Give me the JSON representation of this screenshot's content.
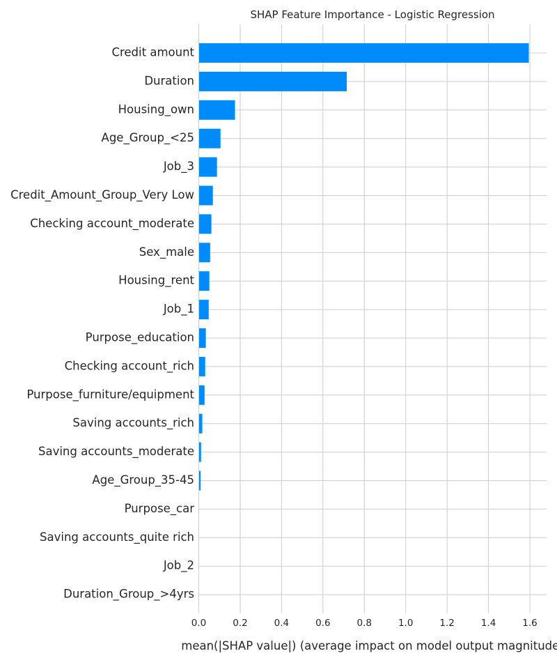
{
  "chart_data": {
    "type": "bar",
    "orientation": "horizontal",
    "title": "SHAP Feature Importance - Logistic Regression",
    "xlabel": "mean(|SHAP value|) (average impact on model output magnitude)",
    "ylabel": "",
    "xlim": [
      0,
      1.7
    ],
    "xticks": [
      "0.0",
      "0.2",
      "0.4",
      "0.6",
      "0.8",
      "1.0",
      "1.2",
      "1.4",
      "1.6"
    ],
    "grid": true,
    "bar_color": "#008bfb",
    "categories": [
      "Credit amount",
      "Duration",
      "Housing_own",
      "Age_Group_<25",
      "Job_3",
      "Credit_Amount_Group_Very Low",
      "Checking account_moderate",
      "Sex_male",
      "Housing_rent",
      "Job_1",
      "Purpose_education",
      "Checking account_rich",
      "Purpose_furniture/equipment",
      "Saving accounts_rich",
      "Saving accounts_moderate",
      "Age_Group_35-45",
      "Purpose_car",
      "Saving accounts_quite rich",
      "Job_2",
      "Duration_Group_>4yrs"
    ],
    "values": [
      1.595,
      0.715,
      0.175,
      0.105,
      0.088,
      0.068,
      0.061,
      0.055,
      0.051,
      0.048,
      0.034,
      0.031,
      0.028,
      0.017,
      0.011,
      0.009,
      0.0,
      0.0,
      0.0,
      0.0
    ]
  }
}
